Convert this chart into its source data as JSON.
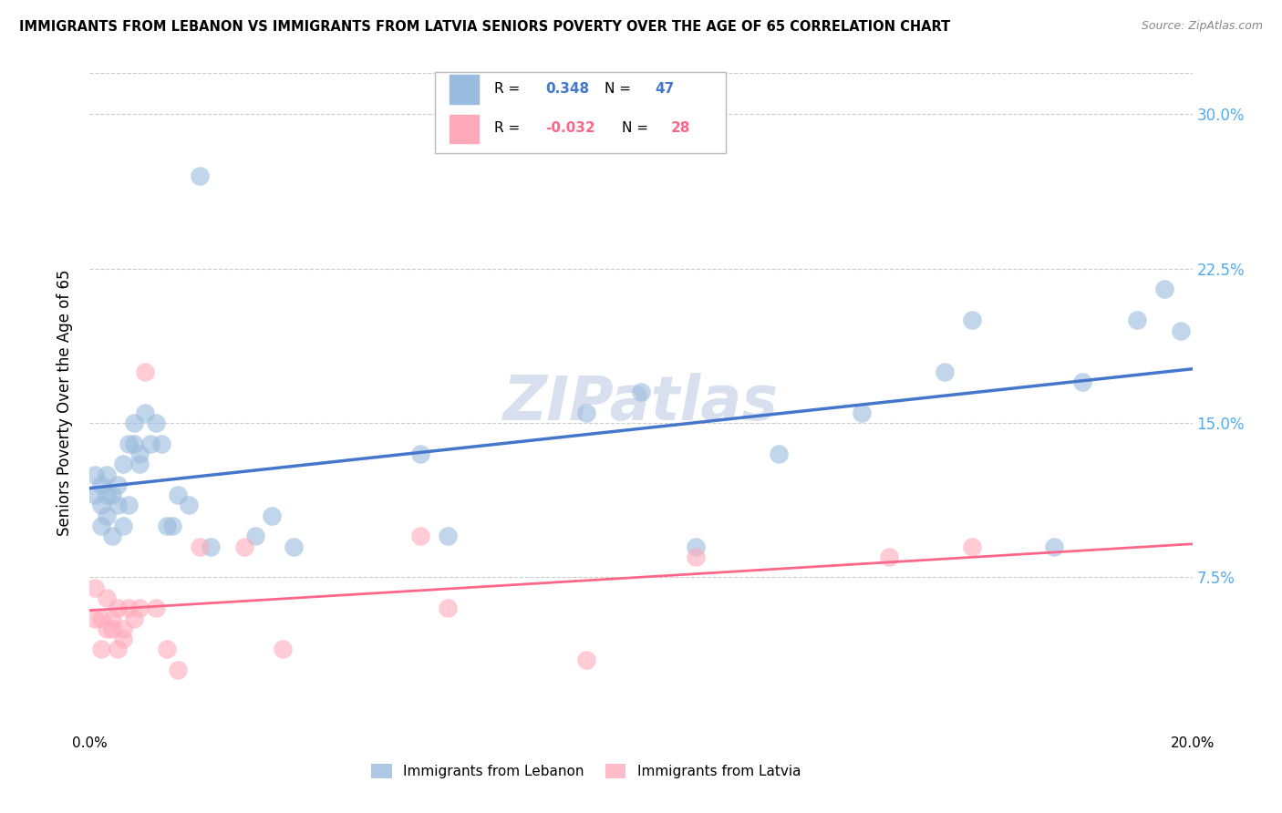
{
  "title": "IMMIGRANTS FROM LEBANON VS IMMIGRANTS FROM LATVIA SENIORS POVERTY OVER THE AGE OF 65 CORRELATION CHART",
  "source": "Source: ZipAtlas.com",
  "ylabel": "Seniors Poverty Over the Age of 65",
  "xlim": [
    0.0,
    0.2
  ],
  "ylim": [
    0.0,
    0.32
  ],
  "ytick_labels_right": [
    "30.0%",
    "22.5%",
    "15.0%",
    "7.5%"
  ],
  "ytick_vals_right": [
    0.3,
    0.225,
    0.15,
    0.075
  ],
  "lebanon_color": "#99bbdd",
  "latvia_color": "#ffaabb",
  "lebanon_line_color": "#4477cc",
  "latvia_line_color": "#ff6688",
  "R_lebanon": 0.348,
  "N_lebanon": 47,
  "R_latvia": -0.032,
  "N_latvia": 28,
  "watermark": "ZIPatlas",
  "watermark_color": "#aabbdd",
  "legend_lebanon": "Immigrants from Lebanon",
  "legend_latvia": "Immigrants from Latvia",
  "lebanon_x": [
    0.001,
    0.001,
    0.002,
    0.002,
    0.002,
    0.003,
    0.003,
    0.003,
    0.004,
    0.004,
    0.005,
    0.005,
    0.006,
    0.006,
    0.007,
    0.007,
    0.008,
    0.008,
    0.009,
    0.009,
    0.01,
    0.011,
    0.012,
    0.013,
    0.014,
    0.015,
    0.016,
    0.018,
    0.02,
    0.022,
    0.03,
    0.033,
    0.037,
    0.06,
    0.065,
    0.09,
    0.1,
    0.11,
    0.125,
    0.14,
    0.155,
    0.16,
    0.175,
    0.18,
    0.19,
    0.195,
    0.198
  ],
  "lebanon_y": [
    0.115,
    0.125,
    0.1,
    0.11,
    0.12,
    0.105,
    0.115,
    0.125,
    0.095,
    0.115,
    0.11,
    0.12,
    0.1,
    0.13,
    0.11,
    0.14,
    0.14,
    0.15,
    0.135,
    0.13,
    0.155,
    0.14,
    0.15,
    0.14,
    0.1,
    0.1,
    0.115,
    0.11,
    0.27,
    0.09,
    0.095,
    0.105,
    0.09,
    0.135,
    0.095,
    0.155,
    0.165,
    0.09,
    0.135,
    0.155,
    0.175,
    0.2,
    0.09,
    0.17,
    0.2,
    0.215,
    0.195
  ],
  "latvia_x": [
    0.001,
    0.001,
    0.002,
    0.002,
    0.003,
    0.003,
    0.004,
    0.004,
    0.005,
    0.005,
    0.006,
    0.006,
    0.007,
    0.008,
    0.009,
    0.01,
    0.012,
    0.014,
    0.016,
    0.02,
    0.028,
    0.035,
    0.06,
    0.065,
    0.09,
    0.11,
    0.145,
    0.16
  ],
  "latvia_y": [
    0.07,
    0.055,
    0.055,
    0.04,
    0.05,
    0.065,
    0.05,
    0.055,
    0.06,
    0.04,
    0.05,
    0.045,
    0.06,
    0.055,
    0.06,
    0.175,
    0.06,
    0.04,
    0.03,
    0.09,
    0.09,
    0.04,
    0.095,
    0.06,
    0.035,
    0.085,
    0.085,
    0.09
  ]
}
